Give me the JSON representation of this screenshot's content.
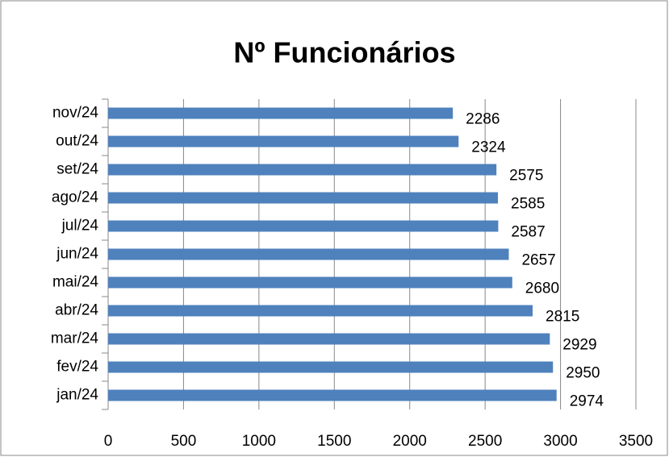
{
  "chart_data": {
    "type": "bar",
    "orientation": "horizontal",
    "title": "Nº Funcionários",
    "categories": [
      "jan/24",
      "fev/24",
      "mar/24",
      "abr/24",
      "mai/24",
      "jun/24",
      "jul/24",
      "ago/24",
      "set/24",
      "out/24",
      "nov/24"
    ],
    "values": [
      2974,
      2950,
      2929,
      2815,
      2680,
      2657,
      2587,
      2585,
      2575,
      2324,
      2286
    ],
    "color": "#4f81bd",
    "xlim": [
      0,
      3500
    ],
    "xticks": [
      0,
      500,
      1000,
      1500,
      2000,
      2500,
      3000,
      3500
    ],
    "grid": true
  }
}
